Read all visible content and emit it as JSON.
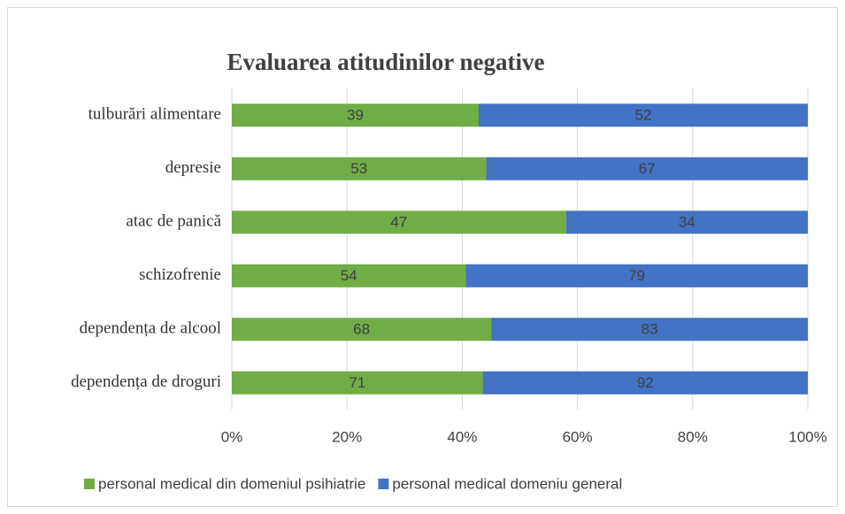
{
  "chart_data": {
    "type": "stacked_bar_100",
    "title": "Evaluarea atitudinilor negative",
    "categories": [
      "tulburări alimentare",
      "depresie",
      "atac de panică",
      "schizofrenie",
      "dependența de alcool",
      "dependența de droguri"
    ],
    "series": [
      {
        "name": "personal medical din domeniul psihiatrie",
        "color": "#70ad47",
        "values": [
          39,
          53,
          47,
          54,
          68,
          71
        ]
      },
      {
        "name": "personal medical domeniu general",
        "color": "#4472c4",
        "values": [
          52,
          67,
          34,
          79,
          83,
          92
        ]
      }
    ],
    "xlim": [
      0,
      100
    ],
    "xticks": [
      {
        "value": 0,
        "label": "0%"
      },
      {
        "value": 20,
        "label": "20%"
      },
      {
        "value": 40,
        "label": "40%"
      },
      {
        "value": 60,
        "label": "60%"
      },
      {
        "value": 80,
        "label": "80%"
      },
      {
        "value": 100,
        "label": "100%"
      }
    ],
    "grid": true,
    "legend": "bottom"
  }
}
